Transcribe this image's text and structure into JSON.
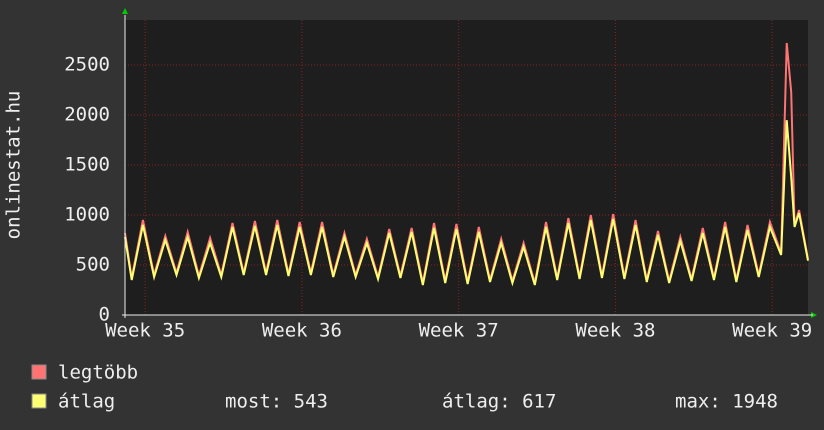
{
  "chart_data": {
    "type": "line",
    "y_label": "onlinestat.hu",
    "x": [
      0,
      0.3,
      0.8,
      1.3,
      1.8,
      2.3,
      2.8,
      3.3,
      3.8,
      4.3,
      4.8,
      5.3,
      5.8,
      6.3,
      6.8,
      7.3,
      7.8,
      8.3,
      8.8,
      9.3,
      9.8,
      10.3,
      10.8,
      11.3,
      11.8,
      12.3,
      12.8,
      13.3,
      13.8,
      14.3,
      14.8,
      15.3,
      15.8,
      16.3,
      16.8,
      17.3,
      17.8,
      18.3,
      18.8,
      19.3,
      19.8,
      20.3,
      20.8,
      21.3,
      21.8,
      22.3,
      22.8,
      23.3,
      23.8,
      24.3,
      24.8,
      25.3,
      25.8,
      26.3,
      26.8,
      27.3,
      27.8,
      28.3,
      28.8,
      29.3,
      29.55,
      29.75,
      29.9,
      30.1,
      30.5
    ],
    "series": [
      {
        "name": "legtöbb",
        "color": "#ff7373",
        "values": [
          820,
          370,
          950,
          400,
          790,
          420,
          830,
          390,
          770,
          400,
          920,
          420,
          940,
          420,
          950,
          410,
          930,
          420,
          930,
          400,
          820,
          400,
          760,
          380,
          860,
          390,
          870,
          320,
          920,
          340,
          910,
          330,
          880,
          350,
          760,
          340,
          720,
          320,
          930,
          370,
          970,
          380,
          1000,
          390,
          1010,
          380,
          950,
          350,
          840,
          340,
          780,
          360,
          870,
          370,
          930,
          350,
          900,
          400,
          930,
          620,
          2720,
          2230,
          900,
          1050,
          560
        ]
      },
      {
        "name": "átlag",
        "color": "#ffff73",
        "values": [
          780,
          350,
          900,
          380,
          750,
          400,
          780,
          370,
          720,
          380,
          880,
          400,
          890,
          400,
          900,
          390,
          880,
          400,
          880,
          380,
          780,
          380,
          720,
          360,
          820,
          370,
          830,
          300,
          870,
          320,
          860,
          310,
          830,
          330,
          720,
          320,
          680,
          300,
          880,
          350,
          920,
          360,
          950,
          370,
          960,
          360,
          900,
          330,
          800,
          320,
          740,
          340,
          820,
          350,
          880,
          330,
          850,
          380,
          880,
          600,
          1948,
          1380,
          880,
          1020,
          543
        ]
      }
    ],
    "xlim": [
      0,
      30.5
    ],
    "xticks": [
      {
        "value": 0.9,
        "label": "Week 35"
      },
      {
        "value": 7.9,
        "label": "Week 36"
      },
      {
        "value": 14.9,
        "label": "Week 37"
      },
      {
        "value": 21.9,
        "label": "Week 38"
      },
      {
        "value": 28.9,
        "label": "Week 39"
      }
    ],
    "ylim": [
      0,
      2950
    ],
    "yticks": [
      0,
      500,
      1000,
      1500,
      2000,
      2500
    ],
    "grid": true,
    "stats": [
      "most: 543",
      "átlag: 617",
      "max: 1948"
    ]
  }
}
